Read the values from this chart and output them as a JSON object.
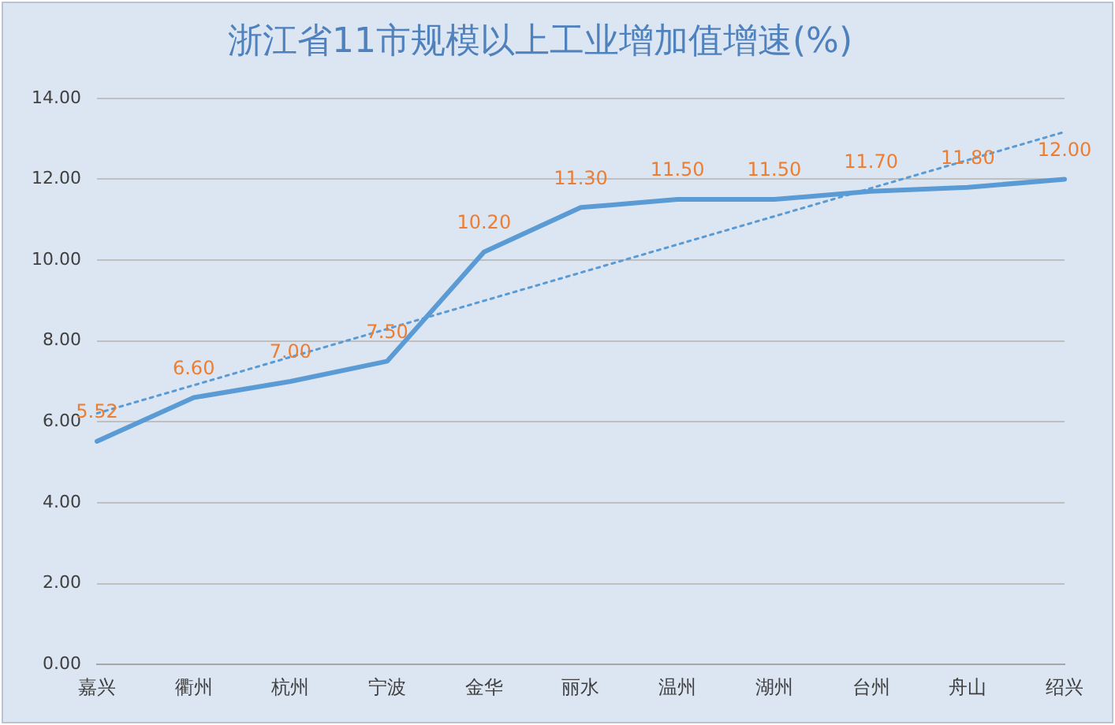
{
  "chart_data": {
    "type": "line",
    "title": "浙江省11市规模以上工业增加值增速(%)",
    "categories": [
      "嘉兴",
      "衢州",
      "杭州",
      "宁波",
      "金华",
      "丽水",
      "温州",
      "湖州",
      "台州",
      "舟山",
      "绍兴"
    ],
    "series": [
      {
        "color": "#5b9bd5",
        "values": [
          5.52,
          6.6,
          7.0,
          7.5,
          10.2,
          11.3,
          11.5,
          11.5,
          11.7,
          11.8,
          12.0
        ],
        "value_labels": [
          "5.52",
          "6.60",
          "7.00",
          "7.50",
          "10.20",
          "11.30",
          "11.50",
          "11.50",
          "11.70",
          "11.80",
          "12.00"
        ]
      },
      {
        "type": "line",
        "color": "#5b9bd5",
        "x": [
          "嘉兴",
          "绍兴"
        ],
        "values": [
          6.21,
          13.17
        ],
        "line_style": "dotted"
      }
    ],
    "ylim": [
      0,
      14
    ],
    "yticks": [
      {
        "value": 0,
        "label": "0.00"
      },
      {
        "value": 2,
        "label": "2.00"
      },
      {
        "value": 4,
        "label": "4.00"
      },
      {
        "value": 6,
        "label": "6.00"
      },
      {
        "value": 8,
        "label": "8.00"
      },
      {
        "value": 10,
        "label": "10.00"
      },
      {
        "value": 12,
        "label": "12.00"
      },
      {
        "value": 14,
        "label": "14.00"
      }
    ],
    "grid": "y",
    "legend": false,
    "marker": "none"
  }
}
